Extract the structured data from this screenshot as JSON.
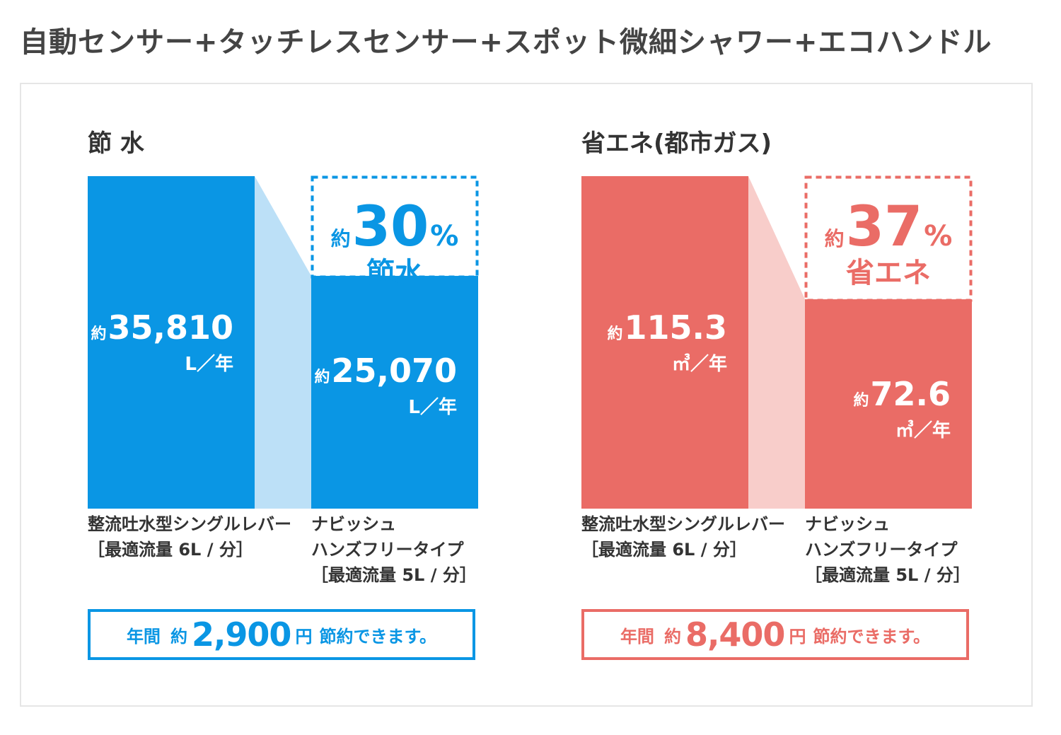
{
  "page_title": "自動センサー+タッチレスセンサー+スポット微細シャワー+エコハンドル",
  "colors": {
    "water": "#0a96e4",
    "water_light": "#bce0f7",
    "energy": "#ea6c66",
    "energy_light": "#f8cdca"
  },
  "chart_data": [
    {
      "type": "bar",
      "title": "節 水",
      "categories": [
        "整流吐水型シングルレバー\n［最適流量 6L / 分］",
        "ナビッシュ\nハンズフリータイプ\n［最適流量 5L / 分］"
      ],
      "values": [
        35810,
        25070
      ],
      "value_labels": [
        "35,810",
        "25,070"
      ],
      "value_prefix": "約",
      "unit": "L／年",
      "reduction": {
        "prefix": "約",
        "value": 30,
        "unit": "%",
        "label": "節水"
      },
      "savings": {
        "lead": "年間",
        "prefix": "約",
        "value": "2,900",
        "currency": "円",
        "tail": "節約できます。"
      }
    },
    {
      "type": "bar",
      "title": "省エネ(都市ガス)",
      "categories": [
        "整流吐水型シングルレバー\n［最適流量 6L / 分］",
        "ナビッシュ\nハンズフリータイプ\n［最適流量 5L / 分］"
      ],
      "values": [
        115.3,
        72.6
      ],
      "value_labels": [
        "115.3",
        "72.6"
      ],
      "value_prefix": "約",
      "unit": "㎥／年",
      "reduction": {
        "prefix": "約",
        "value": 37,
        "unit": "%",
        "label": "省エネ"
      },
      "savings": {
        "lead": "年間",
        "prefix": "約",
        "value": "8,400",
        "currency": "円",
        "tail": "節約できます。"
      }
    }
  ]
}
